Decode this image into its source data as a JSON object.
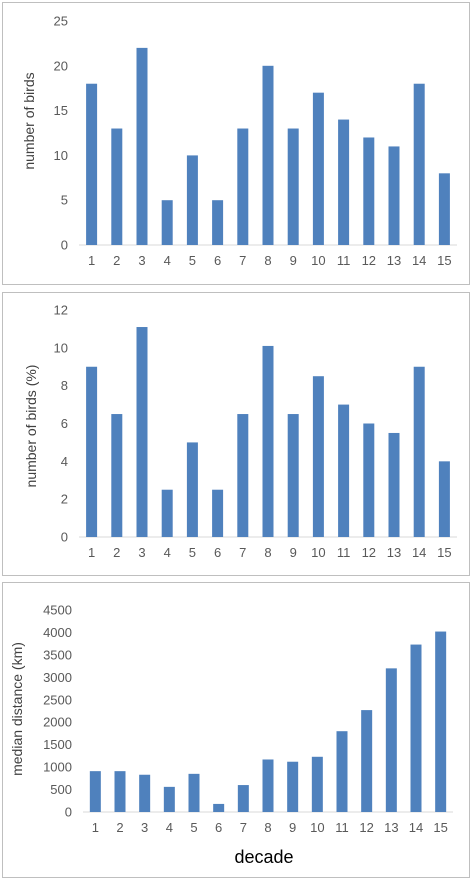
{
  "colors": {
    "bar": "#4f81bd",
    "axis": "#d9d9d9",
    "text": "#595959"
  },
  "chart_data": [
    {
      "type": "bar",
      "categories": [
        "1",
        "2",
        "3",
        "4",
        "5",
        "6",
        "7",
        "8",
        "9",
        "10",
        "11",
        "12",
        "13",
        "14",
        "15"
      ],
      "values": [
        18,
        13,
        22,
        5,
        10,
        5,
        13,
        20,
        13,
        17,
        14,
        12,
        11,
        18,
        8
      ],
      "ylabel": "number of birds",
      "xlabel": "",
      "ylim": [
        0,
        25
      ],
      "yticks": [
        0,
        5,
        10,
        15,
        20,
        25
      ],
      "grid": false,
      "legend": "none"
    },
    {
      "type": "bar",
      "categories": [
        "1",
        "2",
        "3",
        "4",
        "5",
        "6",
        "7",
        "8",
        "9",
        "10",
        "11",
        "12",
        "13",
        "14",
        "15"
      ],
      "values": [
        9.0,
        6.5,
        11.1,
        2.5,
        5.0,
        2.5,
        6.5,
        10.1,
        6.5,
        8.5,
        7.0,
        6.0,
        5.5,
        9.0,
        4.0
      ],
      "ylabel": "number of birds (%)",
      "xlabel": "",
      "ylim": [
        0,
        12
      ],
      "yticks": [
        0,
        2,
        4,
        6,
        8,
        10,
        12
      ],
      "grid": false,
      "legend": "none"
    },
    {
      "type": "bar",
      "categories": [
        "1",
        "2",
        "3",
        "4",
        "5",
        "6",
        "7",
        "8",
        "9",
        "10",
        "11",
        "12",
        "13",
        "14",
        "15"
      ],
      "values": [
        910,
        910,
        830,
        560,
        850,
        180,
        600,
        1170,
        1120,
        1230,
        1800,
        2270,
        3200,
        3730,
        4020
      ],
      "ylabel": "median distance (km)",
      "xlabel": "decade",
      "ylim": [
        0,
        4500
      ],
      "yticks": [
        0,
        500,
        1000,
        1500,
        2000,
        2500,
        3000,
        3500,
        4000,
        4500
      ],
      "grid": false,
      "legend": "none"
    }
  ]
}
